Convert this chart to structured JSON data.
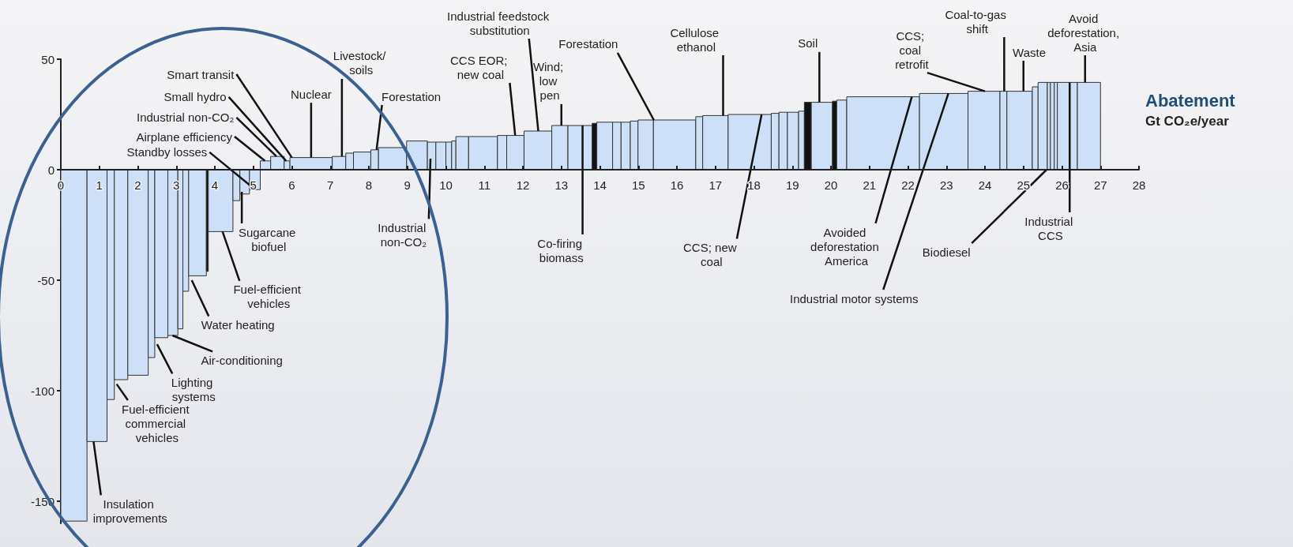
{
  "chart_data": {
    "type": "histogram",
    "xlabel": "Abatement\nGt CO₂e/year",
    "bins": [
      0,
      0.68,
      1.2,
      1.39,
      1.74,
      2.27,
      2.44,
      2.78,
      3.04,
      3.17,
      3.32,
      3.78,
      3.83,
      4.47,
      4.65,
      4.9,
      5.18,
      5.45,
      5.8,
      5.95,
      7.05,
      7.4,
      7.6,
      8.05,
      8.25,
      8.98,
      9.52,
      9.74,
      10.0,
      10.15,
      10.26,
      10.59,
      11.34,
      11.58,
      12.03,
      12.75,
      13.17,
      13.8,
      13.92,
      14.33,
      14.55,
      14.79,
      14.99,
      15.39,
      16.49,
      16.67,
      17.33,
      18.45,
      18.65,
      18.87,
      19.16,
      19.31,
      19.49,
      20.04,
      20.15,
      20.41,
      22.3,
      23.56,
      24.39,
      24.57,
      25.23,
      25.38,
      25.62,
      25.7,
      25.8,
      25.88,
      26.4,
      27.0
    ],
    "values": [
      -159,
      -123,
      -104,
      -95,
      -93,
      -85,
      -76,
      -75,
      -72,
      -55,
      -48,
      -46,
      -28,
      -14,
      -11,
      -9,
      4,
      6,
      4,
      5.5,
      6,
      7.5,
      8,
      9,
      10,
      13,
      12.5,
      12.5,
      12.5,
      13,
      15,
      15,
      15.5,
      15.5,
      17.5,
      20,
      20,
      21,
      21.5,
      21.5,
      21.5,
      22,
      22.5,
      22.5,
      24,
      24.5,
      25,
      25.5,
      26,
      26,
      26.5,
      30.5,
      30.5,
      31,
      31.5,
      33,
      34.5,
      35.5,
      35.5,
      35.5,
      37.5,
      39.5,
      39.5,
      39.5,
      39.5,
      39.5,
      39.5
    ],
    "colors": [
      "#cde0f7",
      "#cde0f7",
      "#cde0f7",
      "#cde0f7",
      "#cde0f7",
      "#cde0f7",
      "#cde0f7",
      "#cde0f7",
      "#cde0f7",
      "#cde0f7",
      "#cde0f7",
      "#111111",
      "#cde0f7",
      "#cde0f7",
      "#cde0f7",
      "#cde0f7",
      "#cde0f7",
      "#cde0f7",
      "#cde0f7",
      "#cde0f7",
      "#cde0f7",
      "#cde0f7",
      "#cde0f7",
      "#cde0f7",
      "#cde0f7",
      "#cde0f7",
      "#cde0f7",
      "#cde0f7",
      "#cde0f7",
      "#cde0f7",
      "#cde0f7",
      "#cde0f7",
      "#cde0f7",
      "#cde0f7",
      "#cde0f7",
      "#cde0f7",
      "#cde0f7",
      "#111111",
      "#cde0f7",
      "#cde0f7",
      "#cde0f7",
      "#cde0f7",
      "#cde0f7",
      "#cde0f7",
      "#cde0f7",
      "#cde0f7",
      "#cde0f7",
      "#cde0f7",
      "#cde0f7",
      "#cde0f7",
      "#cde0f7",
      "#111111",
      "#cde0f7",
      "#111111",
      "#cde0f7",
      "#cde0f7",
      "#cde0f7",
      "#cde0f7",
      "#cde0f7",
      "#cde0f7",
      "#cde0f7",
      "#cde0f7",
      "#cde0f7",
      "#cde0f7",
      "#cde0f7",
      "#cde0f7",
      "#cde0f7"
    ],
    "xlim": [
      0,
      28
    ],
    "xticks": [
      0,
      1,
      2,
      3,
      4,
      5,
      6,
      7,
      8,
      9,
      10,
      11,
      12,
      13,
      14,
      15,
      16,
      17,
      18,
      19,
      20,
      21,
      22,
      23,
      24,
      25,
      26,
      27,
      28
    ],
    "ylim": [
      -160,
      50
    ],
    "yticks": [
      -150,
      -100,
      -50,
      0,
      50
    ],
    "annotations": [
      {
        "text": "Standby losses",
        "x": 5.05,
        "y": -9
      },
      {
        "text": "Airplane efficiency",
        "x": 5.3,
        "y": 4
      },
      {
        "text": "Industrial non-CO₂",
        "x": 5.6,
        "y": 6
      },
      {
        "text": "Small hydro",
        "x": 5.85,
        "y": 4
      },
      {
        "text": "Smart transit",
        "x": 6.0,
        "y": 5.5
      },
      {
        "text": "Nuclear",
        "x": 6.5,
        "y": 5.5
      },
      {
        "text": "Livestock/ soils",
        "x": 7.3,
        "y": 6
      },
      {
        "text": "Forestation",
        "x": 8.2,
        "y": 9
      },
      {
        "text": "CCS EOR; new coal",
        "x": 11.8,
        "y": 15.5
      },
      {
        "text": "Industrial feedstock substitution",
        "x": 12.4,
        "y": 17.5
      },
      {
        "text": "Wind; low pen",
        "x": 13.0,
        "y": 20
      },
      {
        "text": "Forestation",
        "x": 15.4,
        "y": 22.5
      },
      {
        "text": "Cellulose ethanol",
        "x": 17.2,
        "y": 24.5
      },
      {
        "text": "Soil",
        "x": 19.7,
        "y": 30.5
      },
      {
        "text": "CCS; coal retrofit",
        "x": 24.0,
        "y": 35.5
      },
      {
        "text": "Coal-to-gas shift",
        "x": 24.5,
        "y": 35.5
      },
      {
        "text": "Waste",
        "x": 25.0,
        "y": 35.5
      },
      {
        "text": "Avoid deforestation, Asia",
        "x": 26.6,
        "y": 39.5
      },
      {
        "text": "Insulation improvements",
        "x": 0.85,
        "y": -123
      },
      {
        "text": "Fuel-efficient commercial vehicles",
        "x": 1.45,
        "y": -97
      },
      {
        "text": "Lighting systems",
        "x": 2.5,
        "y": -79
      },
      {
        "text": "Air-conditioning",
        "x": 2.9,
        "y": -75
      },
      {
        "text": "Water heating",
        "x": 3.4,
        "y": -50
      },
      {
        "text": "Fuel-efficient vehicles",
        "x": 4.2,
        "y": -28
      },
      {
        "text": "Sugarcane biofuel",
        "x": 4.7,
        "y": -10
      },
      {
        "text": "Industrial non-CO₂",
        "x": 9.6,
        "y": 5
      },
      {
        "text": "Co-firing biomass",
        "x": 13.55,
        "y": 20
      },
      {
        "text": "CCS; new coal",
        "x": 18.2,
        "y": 25
      },
      {
        "text": "Avoided deforestation America",
        "x": 22.1,
        "y": 33
      },
      {
        "text": "Industrial motor systems",
        "x": 23.05,
        "y": 34.5
      },
      {
        "text": "Biodiesel",
        "x": 25.6,
        "y": 0
      },
      {
        "text": "Industrial CCS",
        "x": 26.2,
        "y": 39.5
      }
    ]
  }
}
